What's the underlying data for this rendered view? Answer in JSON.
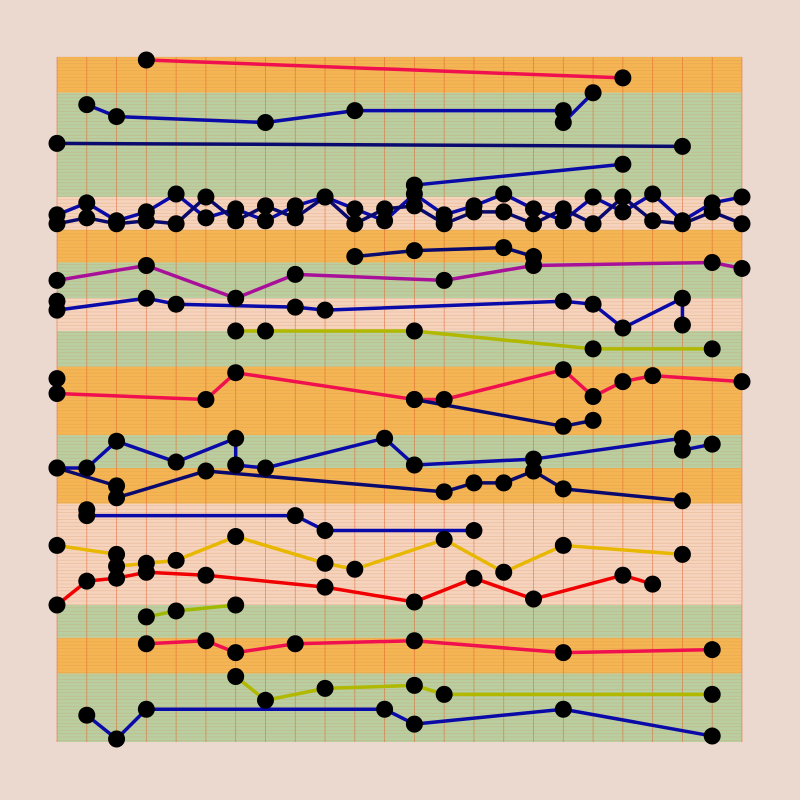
{
  "chart_data": {
    "type": "line",
    "title": "",
    "xlabel": "",
    "ylabel": "",
    "xlim": [
      0,
      23
    ],
    "ylim": [
      0,
      23
    ],
    "grid": true,
    "background_color": "#ebd9d0",
    "bands": [
      {
        "from": 21.8,
        "to": 23.0,
        "color": "#f5b553"
      },
      {
        "from": 18.3,
        "to": 21.8,
        "color": "#b9cfa1"
      },
      {
        "from": 17.2,
        "to": 18.3,
        "color": "#f6d3bd"
      },
      {
        "from": 16.1,
        "to": 17.2,
        "color": "#f5b553"
      },
      {
        "from": 14.9,
        "to": 16.1,
        "color": "#b9cfa1"
      },
      {
        "from": 13.8,
        "to": 14.9,
        "color": "#f6d3bd"
      },
      {
        "from": 12.6,
        "to": 13.8,
        "color": "#b9cfa1"
      },
      {
        "from": 10.3,
        "to": 12.6,
        "color": "#f5b553"
      },
      {
        "from": 9.2,
        "to": 10.3,
        "color": "#b9cfa1"
      },
      {
        "from": 8.0,
        "to": 9.2,
        "color": "#f5b553"
      },
      {
        "from": 4.6,
        "to": 8.0,
        "color": "#f6d3bd"
      },
      {
        "from": 3.5,
        "to": 4.6,
        "color": "#b9cfa1"
      },
      {
        "from": 2.3,
        "to": 3.5,
        "color": "#f5b553"
      },
      {
        "from": 0.0,
        "to": 2.3,
        "color": "#b9cfa1"
      }
    ],
    "series": [
      {
        "color": "#f0104f",
        "points": [
          [
            3,
            22.9
          ],
          [
            19,
            22.3
          ]
        ]
      },
      {
        "color": "#0a0aa8",
        "points": [
          [
            1,
            21.4
          ],
          [
            2,
            21.0
          ],
          [
            7,
            20.8
          ],
          [
            10,
            21.2
          ],
          [
            17,
            21.2
          ],
          [
            17,
            20.8
          ],
          [
            18,
            21.8
          ]
        ]
      },
      {
        "color": "#0a0a6e",
        "points": [
          [
            0,
            20.1
          ],
          [
            21,
            20.0
          ]
        ]
      },
      {
        "color": "#0a0aa8",
        "points": [
          [
            12,
            18.7
          ],
          [
            19,
            19.4
          ]
        ]
      },
      {
        "color": "#0a0aa8",
        "points": [
          [
            0,
            17.7
          ],
          [
            1,
            18.1
          ],
          [
            2,
            17.5
          ],
          [
            3,
            17.8
          ],
          [
            4,
            18.4
          ],
          [
            5,
            17.6
          ],
          [
            6,
            17.9
          ],
          [
            7,
            17.5
          ],
          [
            8,
            18.0
          ],
          [
            9,
            18.3
          ],
          [
            10,
            17.9
          ],
          [
            11,
            17.5
          ],
          [
            12,
            18.4
          ],
          [
            13,
            17.7
          ],
          [
            14,
            18.0
          ],
          [
            15,
            18.4
          ],
          [
            16,
            17.9
          ],
          [
            17,
            17.5
          ],
          [
            18,
            18.3
          ],
          [
            19,
            17.8
          ],
          [
            20,
            18.4
          ],
          [
            21,
            17.5
          ],
          [
            22,
            18.1
          ],
          [
            23,
            18.3
          ]
        ]
      },
      {
        "color": "#0a0a6e",
        "points": [
          [
            0,
            17.4
          ],
          [
            1,
            17.6
          ],
          [
            2,
            17.4
          ],
          [
            3,
            17.5
          ],
          [
            4,
            17.4
          ],
          [
            5,
            18.3
          ],
          [
            6,
            17.5
          ],
          [
            7,
            18.0
          ],
          [
            8,
            17.6
          ],
          [
            9,
            18.3
          ],
          [
            10,
            17.4
          ],
          [
            11,
            17.9
          ],
          [
            12,
            18.0
          ],
          [
            13,
            17.4
          ],
          [
            14,
            17.8
          ],
          [
            15,
            17.8
          ],
          [
            16,
            17.4
          ],
          [
            17,
            17.9
          ],
          [
            18,
            17.4
          ],
          [
            19,
            18.3
          ],
          [
            20,
            17.5
          ],
          [
            21,
            17.4
          ],
          [
            22,
            17.8
          ],
          [
            23,
            17.4
          ]
        ]
      },
      {
        "color": "#0a0a6e",
        "points": [
          [
            10,
            16.3
          ],
          [
            12,
            16.5
          ],
          [
            15,
            16.6
          ],
          [
            16,
            16.3
          ]
        ]
      },
      {
        "color": "#a8109a",
        "points": [
          [
            0,
            15.5
          ],
          [
            3,
            16.0
          ],
          [
            6,
            14.9
          ],
          [
            8,
            15.7
          ],
          [
            13,
            15.5
          ],
          [
            16,
            16.0
          ],
          [
            22,
            16.1
          ],
          [
            23,
            15.9
          ]
        ]
      },
      {
        "color": "#0a0aa8",
        "points": [
          [
            0,
            14.8
          ],
          [
            0,
            14.5
          ],
          [
            3,
            14.9
          ],
          [
            4,
            14.7
          ],
          [
            8,
            14.6
          ],
          [
            9,
            14.5
          ],
          [
            17,
            14.8
          ],
          [
            18,
            14.7
          ],
          [
            19,
            13.9
          ],
          [
            21,
            14.9
          ],
          [
            21,
            14.0
          ]
        ]
      },
      {
        "color": "#b0b800",
        "points": [
          [
            6,
            13.8
          ],
          [
            7,
            13.8
          ],
          [
            12,
            13.8
          ],
          [
            18,
            13.2
          ],
          [
            22,
            13.2
          ]
        ]
      },
      {
        "color": "#f0104f",
        "points": [
          [
            0,
            12.2
          ],
          [
            0,
            11.7
          ],
          [
            5,
            11.5
          ],
          [
            6,
            12.4
          ],
          [
            12,
            11.5
          ],
          [
            13,
            11.5
          ],
          [
            17,
            12.5
          ],
          [
            18,
            11.6
          ],
          [
            19,
            12.1
          ],
          [
            20,
            12.3
          ],
          [
            23,
            12.1
          ]
        ]
      },
      {
        "color": "#0a0a6e",
        "points": [
          [
            12,
            11.5
          ],
          [
            17,
            10.6
          ],
          [
            18,
            10.8
          ]
        ]
      },
      {
        "color": "#0a0aa8",
        "points": [
          [
            0,
            9.2
          ],
          [
            1,
            9.2
          ],
          [
            2,
            10.1
          ],
          [
            4,
            9.4
          ],
          [
            6,
            10.2
          ],
          [
            6,
            9.3
          ],
          [
            7,
            9.2
          ],
          [
            11,
            10.2
          ],
          [
            12,
            9.3
          ],
          [
            16,
            9.5
          ],
          [
            21,
            10.2
          ],
          [
            21,
            9.8
          ],
          [
            22,
            10.0
          ]
        ]
      },
      {
        "color": "#0a0a6e",
        "points": [
          [
            0,
            9.2
          ],
          [
            2,
            8.6
          ],
          [
            2,
            8.2
          ],
          [
            5,
            9.1
          ],
          [
            13,
            8.4
          ],
          [
            14,
            8.7
          ],
          [
            15,
            8.7
          ],
          [
            16,
            9.1
          ],
          [
            17,
            8.5
          ],
          [
            21,
            8.1
          ]
        ]
      },
      {
        "color": "#0a0aa8",
        "points": [
          [
            1,
            7.8
          ],
          [
            1,
            7.6
          ],
          [
            8,
            7.6
          ],
          [
            9,
            7.1
          ],
          [
            14,
            7.1
          ]
        ]
      },
      {
        "color": "#e8b800",
        "points": [
          [
            0,
            6.6
          ],
          [
            2,
            6.3
          ],
          [
            2,
            5.9
          ],
          [
            3,
            6.0
          ],
          [
            4,
            6.1
          ],
          [
            6,
            6.9
          ],
          [
            9,
            6.0
          ],
          [
            10,
            5.8
          ],
          [
            13,
            6.8
          ],
          [
            15,
            5.7
          ],
          [
            17,
            6.6
          ],
          [
            21,
            6.3
          ]
        ]
      },
      {
        "color": "#f00000",
        "points": [
          [
            0,
            4.6
          ],
          [
            1,
            5.4
          ],
          [
            2,
            5.5
          ],
          [
            3,
            5.7
          ],
          [
            5,
            5.6
          ],
          [
            9,
            5.2
          ],
          [
            12,
            4.7
          ],
          [
            14,
            5.5
          ],
          [
            16,
            4.8
          ],
          [
            19,
            5.6
          ],
          [
            20,
            5.3
          ]
        ]
      },
      {
        "color": "#9fb800",
        "points": [
          [
            3,
            4.2
          ],
          [
            4,
            4.4
          ],
          [
            6,
            4.6
          ]
        ]
      },
      {
        "color": "#f0104f",
        "points": [
          [
            3,
            3.3
          ],
          [
            5,
            3.4
          ],
          [
            6,
            3.0
          ],
          [
            8,
            3.3
          ],
          [
            12,
            3.4
          ],
          [
            17,
            3.0
          ],
          [
            22,
            3.1
          ]
        ]
      },
      {
        "color": "#b0b800",
        "points": [
          [
            6,
            2.2
          ],
          [
            7,
            1.4
          ],
          [
            9,
            1.8
          ],
          [
            12,
            1.9
          ],
          [
            13,
            1.6
          ],
          [
            22,
            1.6
          ]
        ]
      },
      {
        "color": "#0a0aa8",
        "points": [
          [
            1,
            0.9
          ],
          [
            2,
            0.1
          ],
          [
            3,
            1.1
          ],
          [
            11,
            1.1
          ],
          [
            12,
            0.6
          ],
          [
            17,
            1.1
          ],
          [
            22,
            0.2
          ]
        ]
      }
    ]
  }
}
